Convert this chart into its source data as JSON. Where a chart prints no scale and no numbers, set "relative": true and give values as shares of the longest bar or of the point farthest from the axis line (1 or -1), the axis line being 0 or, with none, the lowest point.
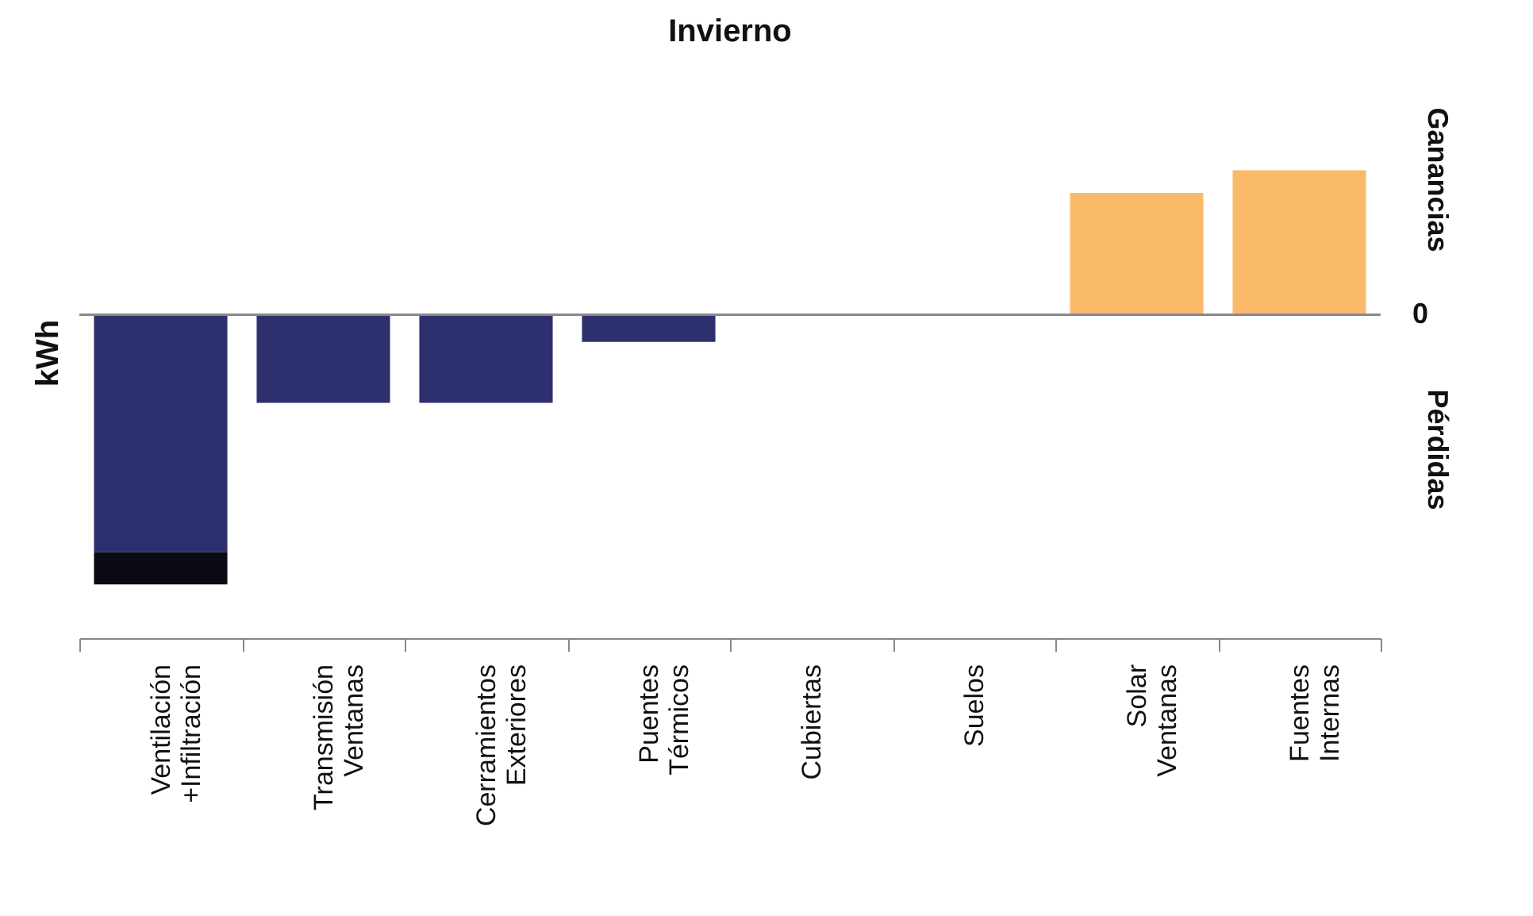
{
  "chart_data": {
    "type": "bar",
    "title": "Invierno",
    "ylabel": "kWh",
    "relative": true,
    "stacked": true,
    "categories": [
      "Ventilación\n+Infiltración",
      "Transmisión\nVentanas",
      "Cerramientos\nExteriores",
      "Puentes\nTérmicos",
      "Cubiertas",
      "Suelos",
      "Solar\nVentanas",
      "Fuentes\nInternas"
    ],
    "series": [
      {
        "color": "#2e2f6e",
        "values": [
          -0.881,
          -0.327,
          -0.327,
          -0.101,
          0,
          0,
          null,
          null
        ]
      },
      {
        "color": "#0a0a14",
        "values": [
          -0.119,
          null,
          null,
          null,
          null,
          null,
          null,
          null
        ]
      },
      {
        "color": "#fbb96a",
        "values": [
          null,
          null,
          null,
          null,
          null,
          null,
          0.452,
          0.536
        ]
      }
    ],
    "annotations": [
      "Ganancias",
      "0",
      "Pérdidas"
    ]
  }
}
